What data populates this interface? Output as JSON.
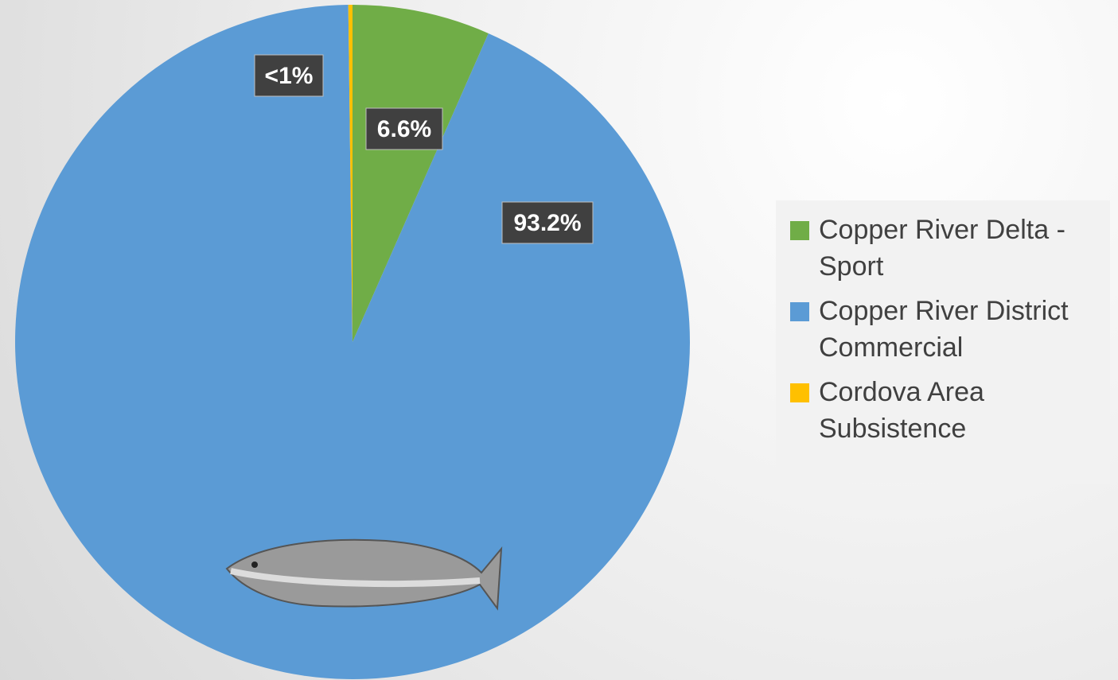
{
  "chart_data": {
    "type": "pie",
    "categories": [
      "Copper River Delta - Sport",
      "Copper River District Commercial",
      "Cordova Area Subsistence"
    ],
    "values": [
      6.6,
      93.2,
      0.2
    ],
    "value_labels": [
      "6.6%",
      "93.2%",
      "<1%"
    ],
    "colors": [
      "#70ad47",
      "#5b9bd5",
      "#ffc000"
    ],
    "legend": "right"
  }
}
